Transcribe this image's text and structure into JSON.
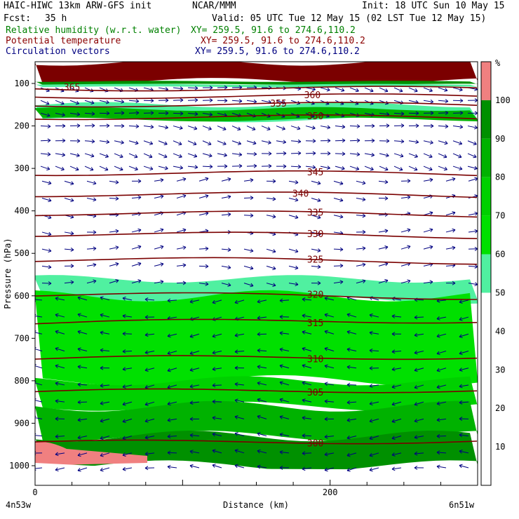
{
  "header": {
    "model": "HAIC-HIWC 13km ARW-GFS init",
    "org": "NCAR/MMM",
    "init": "Init: 18 UTC Sun 10 May 15",
    "fcst_label": "Fcst:",
    "fcst_value": "35 h",
    "valid": "Valid: 05 UTC Tue 12 May 15 (02 LST Tue 12 May 15)",
    "fields": [
      {
        "name": "Relative humidity (w.r.t. water)",
        "xy": "XY= 259.5, 91.6 to 274.6,110.2",
        "color": "#008000"
      },
      {
        "name": "Potential temperature",
        "xy": "XY= 259.5, 91.6 to 274.6,110.2",
        "color": "#8b0000"
      },
      {
        "name": "Circulation vectors",
        "xy": "XY= 259.5, 91.6 to 274.6,110.2",
        "color": "#000080"
      }
    ]
  },
  "chart_data": {
    "type": "heatmap",
    "title": "",
    "xlabel": "Distance (km)",
    "ylabel": "Pressure (hPa)",
    "xlim": [
      0,
      300
    ],
    "ylim": [
      1050,
      50
    ],
    "x_ticks": [
      0,
      200
    ],
    "x_endpoint_labels": [
      "4n53w",
      "6n51w"
    ],
    "y_ticks": [
      100,
      200,
      300,
      400,
      500,
      600,
      700,
      800,
      900,
      1000
    ],
    "colorbar": {
      "unit": "%",
      "ticks": [
        10,
        20,
        30,
        40,
        50,
        60,
        70,
        80,
        90,
        100
      ],
      "levels": [
        {
          "from": 0,
          "to": 50,
          "color": "#ffffff"
        },
        {
          "from": 50,
          "to": 60,
          "color": "#50f0a0"
        },
        {
          "from": 60,
          "to": 70,
          "color": "#00e000"
        },
        {
          "from": 70,
          "to": 80,
          "color": "#00d000"
        },
        {
          "from": 80,
          "to": 90,
          "color": "#00b200"
        },
        {
          "from": 90,
          "to": 100,
          "color": "#009000"
        },
        {
          "from": 100,
          "to": 110,
          "color": "#f08080"
        }
      ]
    },
    "rh_bands": [
      {
        "p_top": 50,
        "p_bottom": 95,
        "color": "#7b0000"
      },
      {
        "p_top": 95,
        "p_bottom": 102,
        "color": "#009000"
      },
      {
        "p_top": 102,
        "p_bottom": 108,
        "color": "#50f0a0"
      },
      {
        "p_top": 150,
        "p_bottom": 185,
        "color": "#50f0a0"
      },
      {
        "p_top": 160,
        "p_bottom": 185,
        "color": "#00b200"
      },
      {
        "p_top": 560,
        "p_bottom": 610,
        "color": "#50f0a0"
      },
      {
        "p_top": 600,
        "p_bottom": 800,
        "color": "#00e000"
      },
      {
        "p_top": 800,
        "p_bottom": 860,
        "color": "#00d000"
      },
      {
        "p_top": 860,
        "p_bottom": 930,
        "color": "#00b200"
      },
      {
        "p_top": 930,
        "p_bottom": 1000,
        "color": "#009000"
      }
    ],
    "theta_isolines": [
      {
        "theta": 365,
        "p": 110,
        "label_x": 25
      },
      {
        "theta": 360,
        "p": 128,
        "label_x": 188
      },
      {
        "theta": 355,
        "p": 148,
        "label_x": 165
      },
      {
        "theta": 350,
        "p": 178,
        "label_x": 190
      },
      {
        "theta": 345,
        "p": 310,
        "label_x": 190
      },
      {
        "theta": 340,
        "p": 360,
        "label_x": 180
      },
      {
        "theta": 335,
        "p": 405,
        "label_x": 190
      },
      {
        "theta": 330,
        "p": 455,
        "label_x": 190
      },
      {
        "theta": 325,
        "p": 515,
        "label_x": 190
      },
      {
        "theta": 320,
        "p": 598,
        "label_x": 190
      },
      {
        "theta": 315,
        "p": 665,
        "label_x": 190
      },
      {
        "theta": 310,
        "p": 750,
        "label_x": 190
      },
      {
        "theta": 305,
        "p": 828,
        "label_x": 190
      },
      {
        "theta": 300,
        "p": 948,
        "label_x": 190
      }
    ],
    "vectors": {
      "upper_rows_p": [
        110,
        140,
        170,
        200,
        235,
        265,
        295
      ],
      "middle_rows_p": [
        330,
        370,
        410,
        450,
        490,
        530,
        570,
        610,
        650,
        690,
        730,
        770,
        810,
        850,
        890,
        930,
        970,
        1005
      ],
      "color": "#000080"
    }
  }
}
